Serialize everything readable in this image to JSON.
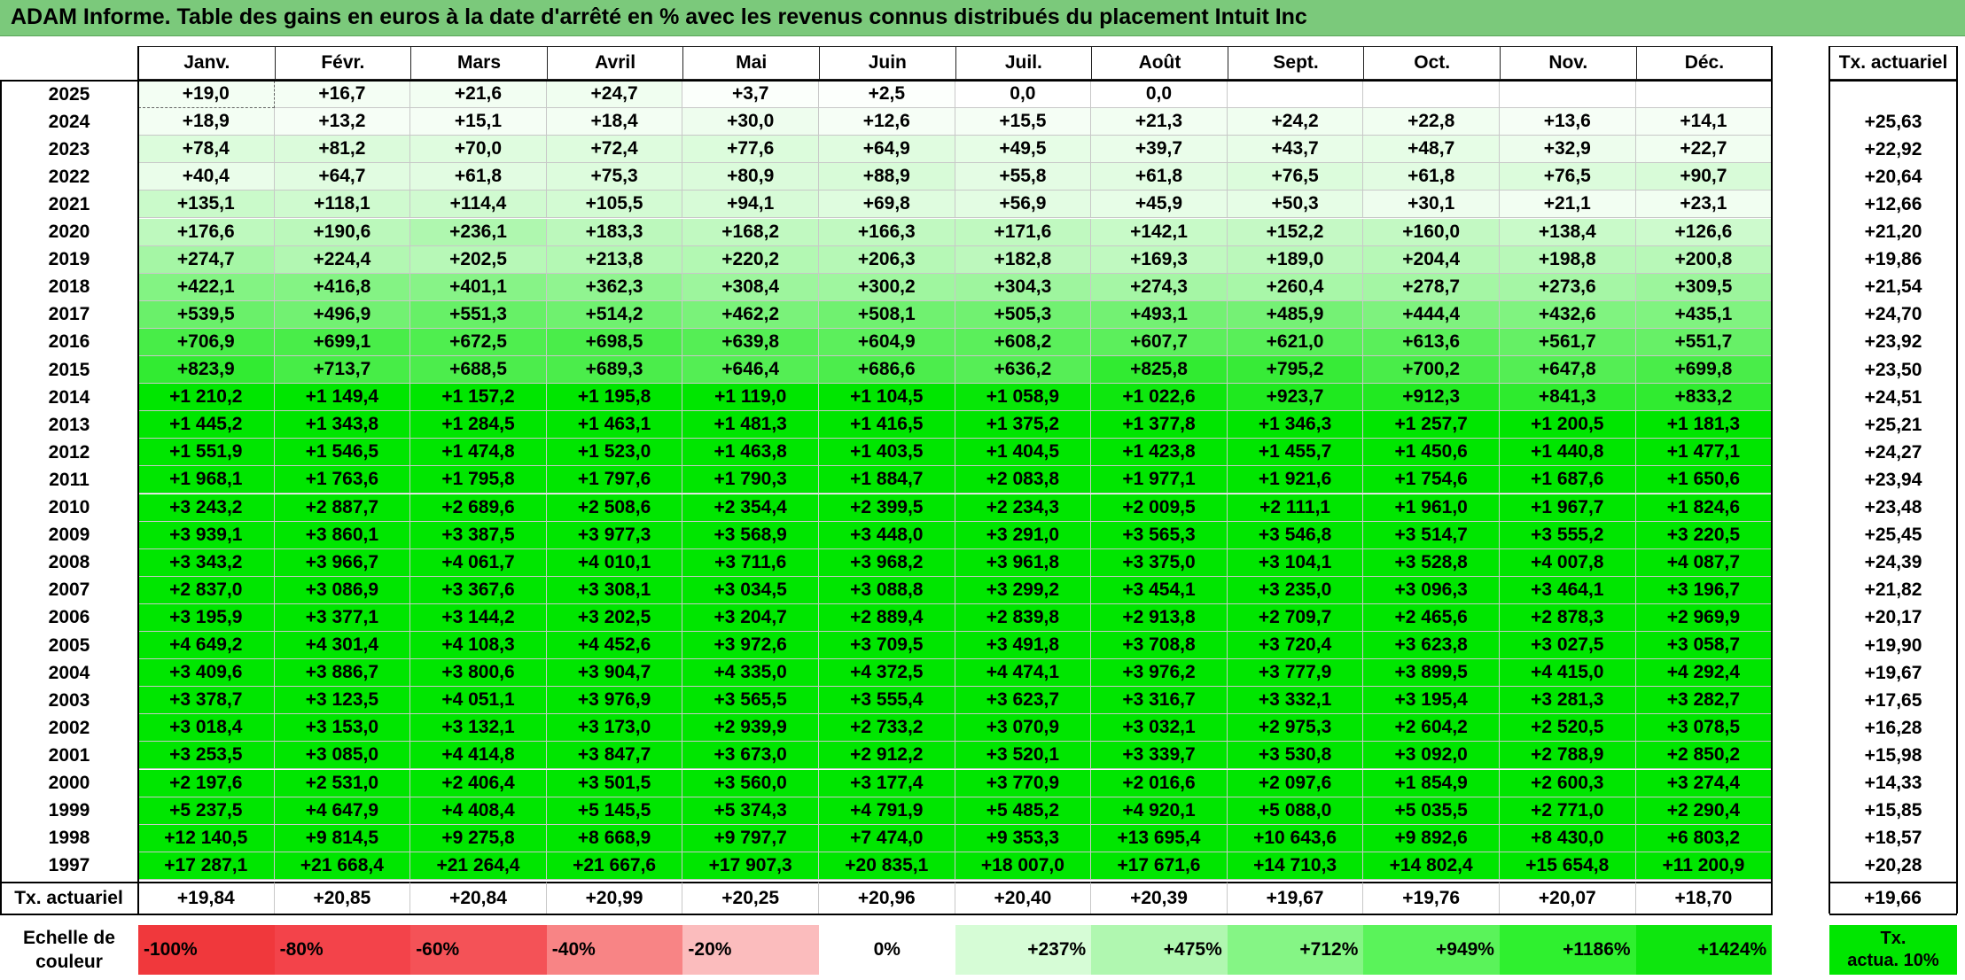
{
  "title": "ADAM Informe. Table des gains en euros à la date d'arrêté en % avec les revenus connus distribués du placement Intuit Inc",
  "months": [
    "Janv.",
    "Févr.",
    "Mars",
    "Avril",
    "Mai",
    "Juin",
    "Juil.",
    "Août",
    "Sept.",
    "Oct.",
    "Nov.",
    "Déc."
  ],
  "rate_header": "Tx. actuariel",
  "rows": [
    {
      "year": "2025",
      "values": [
        "+19,0",
        "+16,7",
        "+21,6",
        "+24,7",
        "+3,7",
        "+2,5",
        "0,0",
        "0,0",
        "",
        "",
        "",
        ""
      ],
      "rate": ""
    },
    {
      "year": "2024",
      "values": [
        "+18,9",
        "+13,2",
        "+15,1",
        "+18,4",
        "+30,0",
        "+12,6",
        "+15,5",
        "+21,3",
        "+24,2",
        "+22,8",
        "+13,6",
        "+14,1"
      ],
      "rate": "+25,63"
    },
    {
      "year": "2023",
      "values": [
        "+78,4",
        "+81,2",
        "+70,0",
        "+72,4",
        "+77,6",
        "+64,9",
        "+49,5",
        "+39,7",
        "+43,7",
        "+48,7",
        "+32,9",
        "+22,7"
      ],
      "rate": "+22,92"
    },
    {
      "year": "2022",
      "values": [
        "+40,4",
        "+64,7",
        "+61,8",
        "+75,3",
        "+80,9",
        "+88,9",
        "+55,8",
        "+61,8",
        "+76,5",
        "+61,8",
        "+76,5",
        "+90,7"
      ],
      "rate": "+20,64"
    },
    {
      "year": "2021",
      "values": [
        "+135,1",
        "+118,1",
        "+114,4",
        "+105,5",
        "+94,1",
        "+69,8",
        "+56,9",
        "+45,9",
        "+50,3",
        "+30,1",
        "+21,1",
        "+23,1"
      ],
      "rate": "+12,66"
    },
    {
      "year": "2020",
      "values": [
        "+176,6",
        "+190,6",
        "+236,1",
        "+183,3",
        "+168,2",
        "+166,3",
        "+171,6",
        "+142,1",
        "+152,2",
        "+160,0",
        "+138,4",
        "+126,6"
      ],
      "rate": "+21,20"
    },
    {
      "year": "2019",
      "values": [
        "+274,7",
        "+224,4",
        "+202,5",
        "+213,8",
        "+220,2",
        "+206,3",
        "+182,8",
        "+169,3",
        "+189,0",
        "+204,4",
        "+198,8",
        "+200,8"
      ],
      "rate": "+19,86"
    },
    {
      "year": "2018",
      "values": [
        "+422,1",
        "+416,8",
        "+401,1",
        "+362,3",
        "+308,4",
        "+300,2",
        "+304,3",
        "+274,3",
        "+260,4",
        "+278,7",
        "+273,6",
        "+309,5"
      ],
      "rate": "+21,54"
    },
    {
      "year": "2017",
      "values": [
        "+539,5",
        "+496,9",
        "+551,3",
        "+514,2",
        "+462,2",
        "+508,1",
        "+505,3",
        "+493,1",
        "+485,9",
        "+444,4",
        "+432,6",
        "+435,1"
      ],
      "rate": "+24,70"
    },
    {
      "year": "2016",
      "values": [
        "+706,9",
        "+699,1",
        "+672,5",
        "+698,5",
        "+639,8",
        "+604,9",
        "+608,2",
        "+607,7",
        "+621,0",
        "+613,6",
        "+561,7",
        "+551,7"
      ],
      "rate": "+23,92"
    },
    {
      "year": "2015",
      "values": [
        "+823,9",
        "+713,7",
        "+688,5",
        "+689,3",
        "+646,4",
        "+686,6",
        "+636,2",
        "+825,8",
        "+795,2",
        "+700,2",
        "+647,8",
        "+699,8"
      ],
      "rate": "+23,50"
    },
    {
      "year": "2014",
      "values": [
        "+1 210,2",
        "+1 149,4",
        "+1 157,2",
        "+1 195,8",
        "+1 119,0",
        "+1 104,5",
        "+1 058,9",
        "+1 022,6",
        "+923,7",
        "+912,3",
        "+841,3",
        "+833,2"
      ],
      "rate": "+24,51"
    },
    {
      "year": "2013",
      "values": [
        "+1 445,2",
        "+1 343,8",
        "+1 284,5",
        "+1 463,1",
        "+1 481,3",
        "+1 416,5",
        "+1 375,2",
        "+1 377,8",
        "+1 346,3",
        "+1 257,7",
        "+1 200,5",
        "+1 181,3"
      ],
      "rate": "+25,21"
    },
    {
      "year": "2012",
      "values": [
        "+1 551,9",
        "+1 546,5",
        "+1 474,8",
        "+1 523,0",
        "+1 463,8",
        "+1 403,5",
        "+1 404,5",
        "+1 423,8",
        "+1 455,7",
        "+1 450,6",
        "+1 440,8",
        "+1 477,1"
      ],
      "rate": "+24,27"
    },
    {
      "year": "2011",
      "values": [
        "+1 968,1",
        "+1 763,6",
        "+1 795,8",
        "+1 797,6",
        "+1 790,3",
        "+1 884,7",
        "+2 083,8",
        "+1 977,1",
        "+1 921,6",
        "+1 754,6",
        "+1 687,6",
        "+1 650,6"
      ],
      "rate": "+23,94"
    },
    {
      "year": "2010",
      "values": [
        "+3 243,2",
        "+2 887,7",
        "+2 689,6",
        "+2 508,6",
        "+2 354,4",
        "+2 399,5",
        "+2 234,3",
        "+2 009,5",
        "+2 111,1",
        "+1 961,0",
        "+1 967,7",
        "+1 824,6"
      ],
      "rate": "+23,48"
    },
    {
      "year": "2009",
      "values": [
        "+3 939,1",
        "+3 860,1",
        "+3 387,5",
        "+3 977,3",
        "+3 568,9",
        "+3 448,0",
        "+3 291,0",
        "+3 565,3",
        "+3 546,8",
        "+3 514,7",
        "+3 555,2",
        "+3 220,5"
      ],
      "rate": "+25,45"
    },
    {
      "year": "2008",
      "values": [
        "+3 343,2",
        "+3 966,7",
        "+4 061,7",
        "+4 010,1",
        "+3 711,6",
        "+3 968,2",
        "+3 961,8",
        "+3 375,0",
        "+3 104,1",
        "+3 528,8",
        "+4 007,8",
        "+4 087,7"
      ],
      "rate": "+24,39"
    },
    {
      "year": "2007",
      "values": [
        "+2 837,0",
        "+3 086,9",
        "+3 367,6",
        "+3 308,1",
        "+3 034,5",
        "+3 088,8",
        "+3 299,2",
        "+3 454,1",
        "+3 235,0",
        "+3 096,3",
        "+3 464,1",
        "+3 196,7"
      ],
      "rate": "+21,82"
    },
    {
      "year": "2006",
      "values": [
        "+3 195,9",
        "+3 377,1",
        "+3 144,2",
        "+3 202,5",
        "+3 204,7",
        "+2 889,4",
        "+2 839,8",
        "+2 913,8",
        "+2 709,7",
        "+2 465,6",
        "+2 878,3",
        "+2 969,9"
      ],
      "rate": "+20,17"
    },
    {
      "year": "2005",
      "values": [
        "+4 649,2",
        "+4 301,4",
        "+4 108,3",
        "+4 452,6",
        "+3 972,6",
        "+3 709,5",
        "+3 491,8",
        "+3 708,8",
        "+3 720,4",
        "+3 623,8",
        "+3 027,5",
        "+3 058,7"
      ],
      "rate": "+19,90"
    },
    {
      "year": "2004",
      "values": [
        "+3 409,6",
        "+3 886,7",
        "+3 800,6",
        "+3 904,7",
        "+4 335,0",
        "+4 372,5",
        "+4 474,1",
        "+3 976,2",
        "+3 777,9",
        "+3 899,5",
        "+4 415,0",
        "+4 292,4"
      ],
      "rate": "+19,67"
    },
    {
      "year": "2003",
      "values": [
        "+3 378,7",
        "+3 123,5",
        "+4 051,1",
        "+3 976,9",
        "+3 565,5",
        "+3 555,4",
        "+3 623,7",
        "+3 316,7",
        "+3 332,1",
        "+3 195,4",
        "+3 281,3",
        "+3 282,7"
      ],
      "rate": "+17,65"
    },
    {
      "year": "2002",
      "values": [
        "+3 018,4",
        "+3 153,0",
        "+3 132,1",
        "+3 173,0",
        "+2 939,9",
        "+2 733,2",
        "+3 070,9",
        "+3 032,1",
        "+2 975,3",
        "+2 604,2",
        "+2 520,5",
        "+3 078,5"
      ],
      "rate": "+16,28"
    },
    {
      "year": "2001",
      "values": [
        "+3 253,5",
        "+3 085,0",
        "+4 414,8",
        "+3 847,7",
        "+3 673,0",
        "+2 912,2",
        "+3 520,1",
        "+3 339,7",
        "+3 530,8",
        "+3 092,0",
        "+2 788,9",
        "+2 850,2"
      ],
      "rate": "+15,98"
    },
    {
      "year": "2000",
      "values": [
        "+2 197,6",
        "+2 531,0",
        "+2 406,4",
        "+3 501,5",
        "+3 560,0",
        "+3 177,4",
        "+3 770,9",
        "+2 016,6",
        "+2 097,6",
        "+1 854,9",
        "+2 600,3",
        "+3 274,4"
      ],
      "rate": "+14,33"
    },
    {
      "year": "1999",
      "values": [
        "+5 237,5",
        "+4 647,9",
        "+4 408,4",
        "+5 145,5",
        "+5 374,3",
        "+4 791,9",
        "+5 485,2",
        "+4 920,1",
        "+5 088,0",
        "+5 035,5",
        "+2 771,0",
        "+2 290,4"
      ],
      "rate": "+15,85"
    },
    {
      "year": "1998",
      "values": [
        "+12 140,5",
        "+9 814,5",
        "+9 275,8",
        "+8 668,9",
        "+9 797,7",
        "+7 474,0",
        "+9 353,3",
        "+13 695,4",
        "+10 643,6",
        "+9 892,6",
        "+8 430,0",
        "+6 803,2"
      ],
      "rate": "+18,57"
    },
    {
      "year": "1997",
      "values": [
        "+17 287,1",
        "+21 668,4",
        "+21 264,4",
        "+21 667,6",
        "+17 907,3",
        "+20 835,1",
        "+18 007,0",
        "+17 671,6",
        "+14 710,3",
        "+14 802,4",
        "+15 654,8",
        "+11 200,9"
      ],
      "rate": "+20,28"
    }
  ],
  "footer": {
    "label": "Tx. actuariel",
    "values": [
      "+19,84",
      "+20,85",
      "+20,84",
      "+20,99",
      "+20,25",
      "+20,96",
      "+20,40",
      "+20,39",
      "+19,67",
      "+19,76",
      "+20,07",
      "+18,70"
    ],
    "rate": "+19,66"
  },
  "legend": {
    "label_line1": "Echelle de",
    "label_line2": "couleur",
    "items": [
      {
        "text": "-100%",
        "color": "#f0383c"
      },
      {
        "text": "-80%",
        "color": "#f3434a"
      },
      {
        "text": "-60%",
        "color": "#f45257"
      },
      {
        "text": "-40%",
        "color": "#f88485"
      },
      {
        "text": "-20%",
        "color": "#fbbcbd"
      },
      {
        "text": "0%",
        "color": "#ffffff"
      },
      {
        "text": "+237%",
        "color": "#d6fcd6"
      },
      {
        "text": "+475%",
        "color": "#b0f7b0"
      },
      {
        "text": "+712%",
        "color": "#85f585"
      },
      {
        "text": "+949%",
        "color": "#5af35a"
      },
      {
        "text": "+1186%",
        "color": "#2ff02f"
      },
      {
        "text": "+1424%",
        "color": "#0ee60e"
      }
    ],
    "rate_line1": "Tx.",
    "rate_line2": "actua. 10%",
    "rate_color": "#00e600"
  },
  "colors": {
    "max_green": "#00e600",
    "title_bg": "#7bc97b"
  }
}
